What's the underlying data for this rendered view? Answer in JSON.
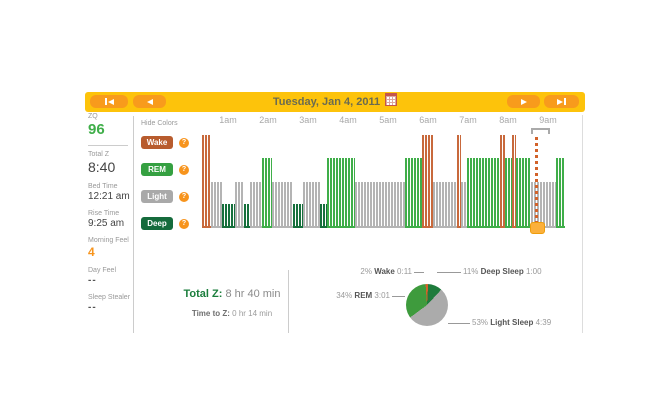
{
  "header": {
    "title": "Tuesday, Jan 4, 2011",
    "colors": {
      "bar": "#FDC30B",
      "button": "#F89B1C",
      "title_text": "#6B6B50"
    }
  },
  "sidebar": {
    "items": [
      {
        "label": "ZQ",
        "value": "96",
        "style": "zq"
      },
      {
        "label": "Total Z",
        "value": "8:40",
        "style": "large"
      },
      {
        "label": "Bed Time",
        "value": "12:21 am",
        "style": "medium"
      },
      {
        "label": "Rise Time",
        "value": "9:25 am",
        "style": "medium"
      },
      {
        "label": "Morning Feel",
        "value": "4",
        "style": "orange"
      },
      {
        "label": "Day Feel",
        "value": "--",
        "style": "dash"
      },
      {
        "label": "Sleep Stealer",
        "value": "--",
        "style": "dash"
      }
    ]
  },
  "legend": {
    "hide_colors_label": "Hide Colors",
    "help_icon_color": "#F7941D",
    "items": [
      {
        "id": "wake",
        "label": "Wake",
        "color": "#B85C2E"
      },
      {
        "id": "rem",
        "label": "REM",
        "color": "#35A041"
      },
      {
        "id": "light",
        "label": "Light",
        "color": "#A9A9A9"
      },
      {
        "id": "deep",
        "label": "Deep",
        "color": "#156B3C"
      }
    ]
  },
  "chart_data": [
    {
      "type": "bar",
      "subtype": "hypnogram",
      "x_tick_labels": [
        "1am",
        "2am",
        "3am",
        "4am",
        "5am",
        "6am",
        "7am",
        "8am",
        "9am"
      ],
      "x_start_time": "12:21 am",
      "x_end_time": "9:25 am",
      "total_minutes": 544,
      "stages": {
        "wake": {
          "label": "Wake",
          "level": 4,
          "color": "#C8693C"
        },
        "rem": {
          "label": "REM",
          "level": 3,
          "color": "#3FAE49"
        },
        "light": {
          "label": "Light",
          "level": 2,
          "color": "#B4B4B4"
        },
        "deep": {
          "label": "Deep",
          "level": 1,
          "color": "#16703C"
        }
      },
      "segments": [
        [
          0,
          14,
          "wake"
        ],
        [
          14,
          30,
          "light"
        ],
        [
          30,
          50,
          "deep"
        ],
        [
          50,
          63,
          "light"
        ],
        [
          63,
          72,
          "deep"
        ],
        [
          72,
          90,
          "light"
        ],
        [
          90,
          105,
          "rem"
        ],
        [
          105,
          137,
          "light"
        ],
        [
          137,
          152,
          "deep"
        ],
        [
          152,
          177,
          "light"
        ],
        [
          177,
          188,
          "deep"
        ],
        [
          188,
          230,
          "rem"
        ],
        [
          230,
          305,
          "light"
        ],
        [
          305,
          330,
          "rem"
        ],
        [
          330,
          347,
          "wake"
        ],
        [
          347,
          383,
          "light"
        ],
        [
          383,
          389,
          "wake"
        ],
        [
          389,
          398,
          "light"
        ],
        [
          398,
          447,
          "rem"
        ],
        [
          447,
          455,
          "wake"
        ],
        [
          455,
          465,
          "rem"
        ],
        [
          465,
          471,
          "wake"
        ],
        [
          471,
          494,
          "rem"
        ],
        [
          494,
          531,
          "light"
        ],
        [
          531,
          544,
          "rem"
        ]
      ],
      "current_position_min": 500,
      "selection_bracket": {
        "start_min": 494,
        "end_min": 522
      },
      "marker_color": "#FBB03B",
      "dotted_line_color": "#D2622A"
    },
    {
      "type": "pie",
      "start_angle_deg": -4,
      "slices": [
        {
          "id": "wake",
          "pct": 2,
          "label": "Wake",
          "duration": "0:11",
          "color": "#D2622A"
        },
        {
          "id": "deep",
          "pct": 11,
          "label": "Deep Sleep",
          "duration": "1:00",
          "color": "#1E7B3C"
        },
        {
          "id": "light",
          "pct": 53,
          "label": "Light Sleep",
          "duration": "4:39",
          "color": "#ABABAB"
        },
        {
          "id": "rem",
          "pct": 34,
          "label": "REM",
          "duration": "3:01",
          "color": "#3E9B3D"
        }
      ]
    }
  ],
  "summary": {
    "total_z_label": "Total Z:",
    "total_z_value": "8 hr 40 min",
    "time_to_z_label": "Time to Z:",
    "time_to_z_value": "0 hr 14 min"
  }
}
